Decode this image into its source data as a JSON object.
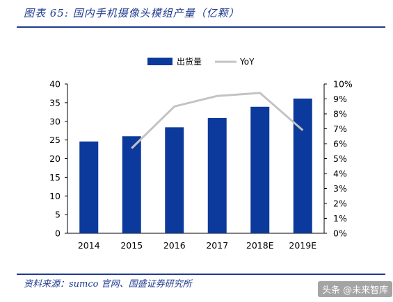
{
  "title": "图表 65:  国内手机摄像头模组产量（亿颗）",
  "source": "资料来源：sumco 官网、国盛证券研究所",
  "watermark": "头条 @未来智库",
  "colors": {
    "bar": "#0c3a9c",
    "line": "#c3c3c3",
    "accent": "#1f3b8f"
  },
  "chart_data": {
    "type": "bar",
    "categories": [
      "2014",
      "2015",
      "2016",
      "2017",
      "2018E",
      "2019E"
    ],
    "series": [
      {
        "name": "出货量",
        "type": "bar",
        "axis": "left",
        "values": [
          24.6,
          26.0,
          28.4,
          30.9,
          33.9,
          36.1
        ]
      },
      {
        "name": "YoY",
        "type": "line",
        "axis": "right",
        "values": [
          null,
          0.057,
          0.085,
          0.092,
          0.094,
          0.069
        ]
      }
    ],
    "y_left": {
      "min": 0,
      "max": 40,
      "ticks": [
        "0",
        "5",
        "10",
        "15",
        "20",
        "25",
        "30",
        "35",
        "40"
      ]
    },
    "y_right": {
      "min": 0,
      "max": 0.1,
      "ticks": [
        "0%",
        "1%",
        "2%",
        "3%",
        "4%",
        "5%",
        "6%",
        "7%",
        "8%",
        "9%",
        "10%"
      ]
    },
    "legend": {
      "placement": "top-center",
      "items": [
        "出货量",
        "YoY"
      ]
    },
    "grid": false
  }
}
